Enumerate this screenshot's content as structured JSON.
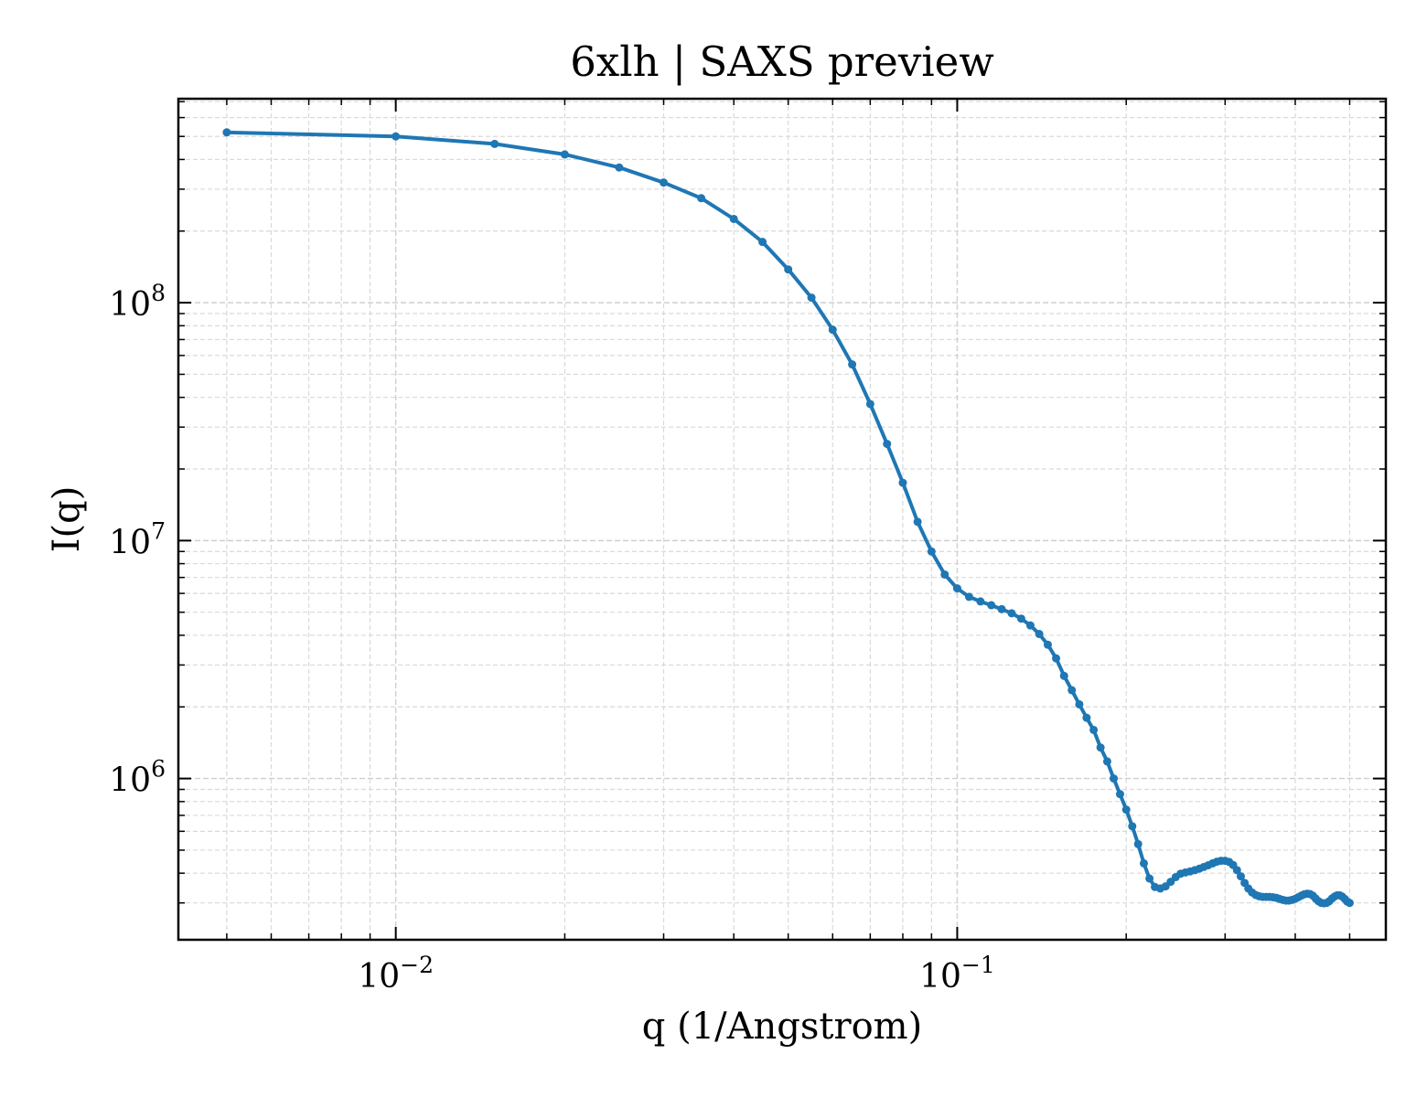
{
  "chart_data": {
    "type": "line",
    "title": "6xlh | SAXS preview",
    "xlabel": "q (1/Angstrom)",
    "ylabel": "I(q)",
    "xscale": "log",
    "yscale": "log",
    "xlim": [
      0.0041,
      0.58
    ],
    "ylim": [
      210000,
      720000000
    ],
    "grid": true,
    "x_ticks": [
      {
        "value": 0.01,
        "base": "10",
        "exp": "−2"
      },
      {
        "value": 0.1,
        "base": "10",
        "exp": "−1"
      }
    ],
    "y_ticks": [
      {
        "value": 1000000,
        "base": "10",
        "exp": "6"
      },
      {
        "value": 10000000,
        "base": "10",
        "exp": "7"
      },
      {
        "value": 100000000,
        "base": "10",
        "exp": "8"
      }
    ],
    "series": [
      {
        "color": "#1f77b4",
        "x": [
          0.005,
          0.01,
          0.015,
          0.02,
          0.025,
          0.03,
          0.035,
          0.04,
          0.045,
          0.05,
          0.055,
          0.06,
          0.065,
          0.07,
          0.075,
          0.08,
          0.085,
          0.09,
          0.095,
          0.1,
          0.105,
          0.11,
          0.115,
          0.12,
          0.125,
          0.13,
          0.135,
          0.14,
          0.145,
          0.15,
          0.155,
          0.16,
          0.165,
          0.17,
          0.175,
          0.18,
          0.185,
          0.19,
          0.195,
          0.2,
          0.205,
          0.21,
          0.215,
          0.22,
          0.225,
          0.23,
          0.235,
          0.24,
          0.245,
          0.25,
          0.255,
          0.26,
          0.265,
          0.27,
          0.275,
          0.28,
          0.285,
          0.29,
          0.295,
          0.3,
          0.305,
          0.31,
          0.315,
          0.32,
          0.325,
          0.33,
          0.335,
          0.34,
          0.345,
          0.35,
          0.355,
          0.36,
          0.365,
          0.37,
          0.375,
          0.38,
          0.385,
          0.39,
          0.395,
          0.4,
          0.405,
          0.41,
          0.415,
          0.42,
          0.425,
          0.43,
          0.435,
          0.44,
          0.445,
          0.45,
          0.455,
          0.46,
          0.465,
          0.47,
          0.475,
          0.48,
          0.485,
          0.49,
          0.495,
          0.5
        ],
        "y": [
          520000000,
          500000000,
          465000000,
          420000000,
          370000000,
          320000000,
          275000000,
          225000000,
          180000000,
          138000000,
          105000000,
          77000000,
          55000000,
          37500000,
          25500000,
          17500000,
          12000000,
          9000000,
          7200000,
          6300000,
          5800000,
          5550000,
          5350000,
          5150000,
          4950000,
          4700000,
          4400000,
          4050000,
          3650000,
          3200000,
          2700000,
          2350000,
          2050000,
          1800000,
          1600000,
          1350000,
          1180000,
          1000000,
          860000,
          740000,
          630000,
          530000,
          440000,
          380000,
          350000,
          345000,
          352000,
          368000,
          385000,
          398000,
          403000,
          407000,
          412000,
          418000,
          425000,
          432000,
          440000,
          447000,
          451000,
          451000,
          446000,
          433000,
          412000,
          388000,
          364000,
          345000,
          332000,
          324000,
          320000,
          318000,
          318000,
          318000,
          317000,
          315000,
          312000,
          309000,
          307000,
          307000,
          309000,
          312000,
          317000,
          322000,
          326000,
          328000,
          327000,
          322000,
          313000,
          305000,
          300000,
          299000,
          300000,
          305000,
          313000,
          319000,
          323000,
          323000,
          319000,
          312000,
          304000,
          300000
        ]
      }
    ]
  }
}
